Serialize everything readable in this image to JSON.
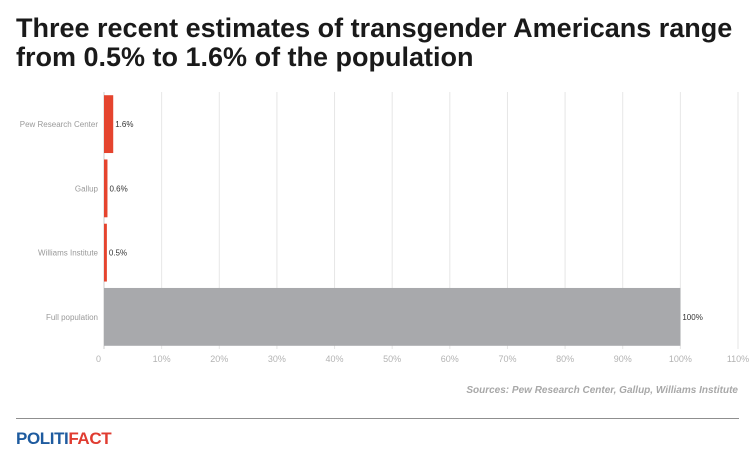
{
  "title": "Three recent estimates of transgender Americans range from 0.5% to 1.6% of the population",
  "source": "Sources: Pew Research Center, Gallup, Williams Institute",
  "logo": {
    "part1": "POLITI",
    "part2": "FACT"
  },
  "colors": {
    "estimate": "#e5442e",
    "population": "#a8a9ac",
    "grid": "#e6e6e6",
    "logo_blue": "#1e5b9f",
    "logo_red": "#e03c31"
  },
  "chart_data": {
    "type": "bar",
    "orientation": "horizontal",
    "categories": [
      "Pew Research Center",
      "Gallup",
      "Williams Institute",
      "Full population"
    ],
    "values": [
      1.6,
      0.6,
      0.5,
      100
    ],
    "value_labels": [
      "1.6%",
      "0.6%",
      "0.5%",
      "100%"
    ],
    "bar_colors": [
      "#e5442e",
      "#e5442e",
      "#e5442e",
      "#a8a9ac"
    ],
    "xlim": [
      0,
      110
    ],
    "xticks": [
      0,
      10,
      20,
      30,
      40,
      50,
      60,
      70,
      80,
      90,
      100,
      110
    ],
    "xtick_labels": [
      "0",
      "10%",
      "20%",
      "30%",
      "40%",
      "50%",
      "60%",
      "70%",
      "80%",
      "90%",
      "100%",
      "110%"
    ],
    "grid": true
  }
}
